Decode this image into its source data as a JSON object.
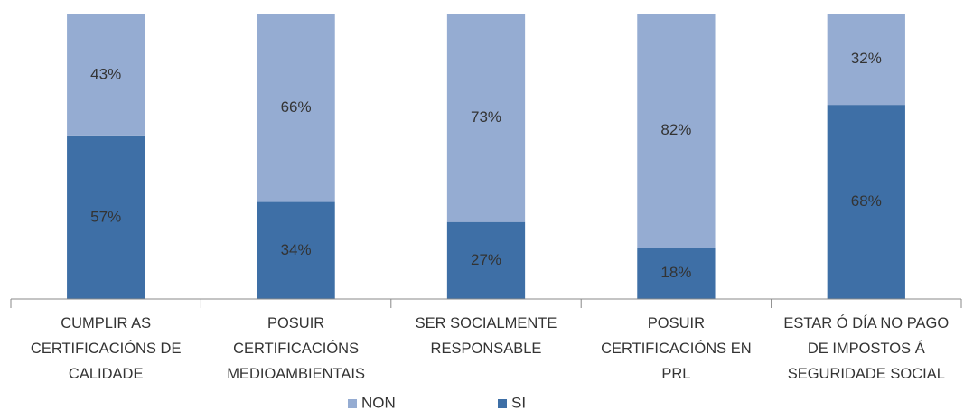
{
  "chart_data": {
    "type": "bar",
    "stacked": true,
    "categories": [
      "CUMPLIR AS CERTIFICACIÓNS DE CALIDADE",
      "POSUIR CERTIFICACIÓNS MEDIOAMBIENTAIS",
      "SER SOCIALMENTE RESPONSABLE",
      "POSUIR CERTIFICACIÓNS EN PRL",
      "ESTAR Ó DÍA NO PAGO DE IMPOSTOS Á SEGURIDADE SOCIAL"
    ],
    "series": [
      {
        "name": "SI",
        "color": "#3e6fa6",
        "values": [
          57,
          34,
          27,
          18,
          68
        ],
        "value_labels": [
          "57%",
          "34%",
          "27%",
          "18%",
          "68%"
        ]
      },
      {
        "name": "NON",
        "color": "#95acd2",
        "values": [
          43,
          66,
          73,
          82,
          32
        ],
        "value_labels": [
          "43%",
          "66%",
          "73%",
          "82%",
          "32%"
        ]
      }
    ],
    "ylim": [
      0,
      100
    ],
    "grid": false,
    "legend": "bottom"
  }
}
